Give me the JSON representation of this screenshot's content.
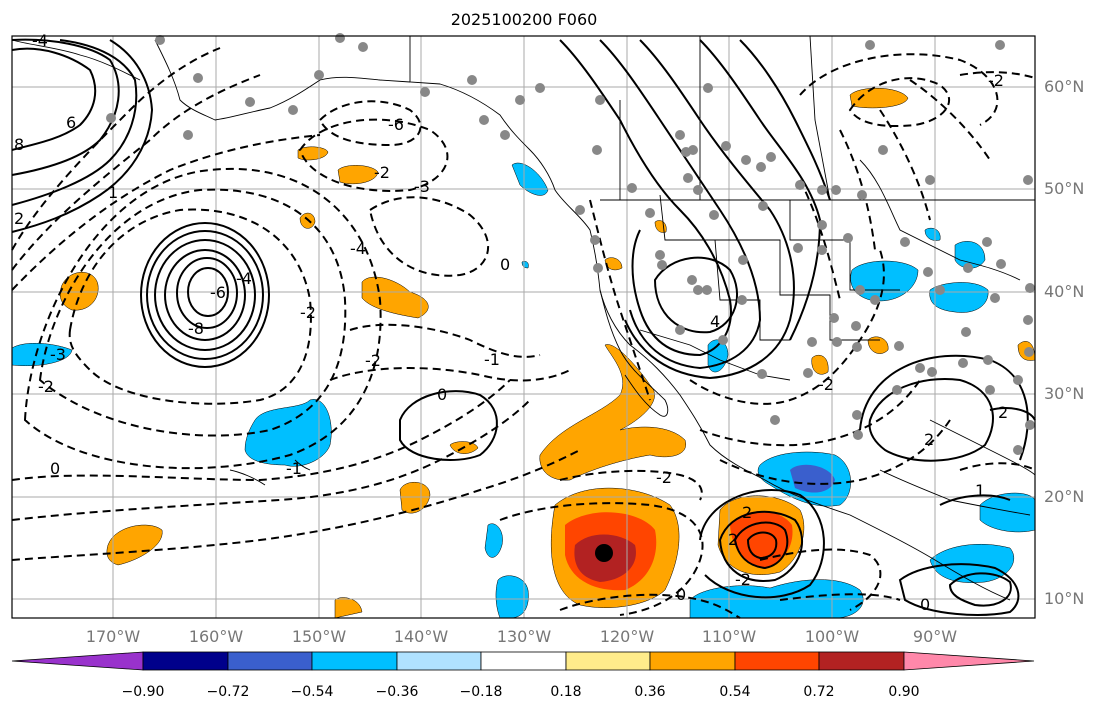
{
  "title": "2025100200 F060",
  "lat_labels": [
    "60°N",
    "50°N",
    "40°N",
    "30°N",
    "20°N",
    "10°N"
  ],
  "lon_labels": [
    "170°W",
    "160°W",
    "150°W",
    "140°W",
    "130°W",
    "120°W",
    "110°W",
    "100°W",
    "90°W"
  ],
  "colorbar": {
    "ticks": [
      "−0.90",
      "−0.72",
      "−0.54",
      "−0.36",
      "−0.18",
      "0.18",
      "0.36",
      "0.54",
      "0.72",
      "0.90"
    ],
    "colors": [
      "#9932cc",
      "#00008b",
      "#3a5fcd",
      "#00bfff",
      "#b0e2ff",
      "#ffffff",
      "#ffec8b",
      "#ffa500",
      "#ff4500",
      "#b22222",
      "#ff88aa"
    ]
  },
  "contour_labels": [
    "-4",
    "6",
    "8",
    "2",
    "1",
    "-3",
    "-2",
    "0",
    "-6",
    "-4",
    "-3",
    "-4",
    "-2",
    "-1",
    "0",
    "-2",
    "-8",
    "-6",
    "-2",
    "0",
    "-2",
    "-1",
    "0",
    "-2",
    "2",
    "4",
    "2",
    "-2",
    "1",
    "2",
    "0",
    "-2",
    "2"
  ]
}
